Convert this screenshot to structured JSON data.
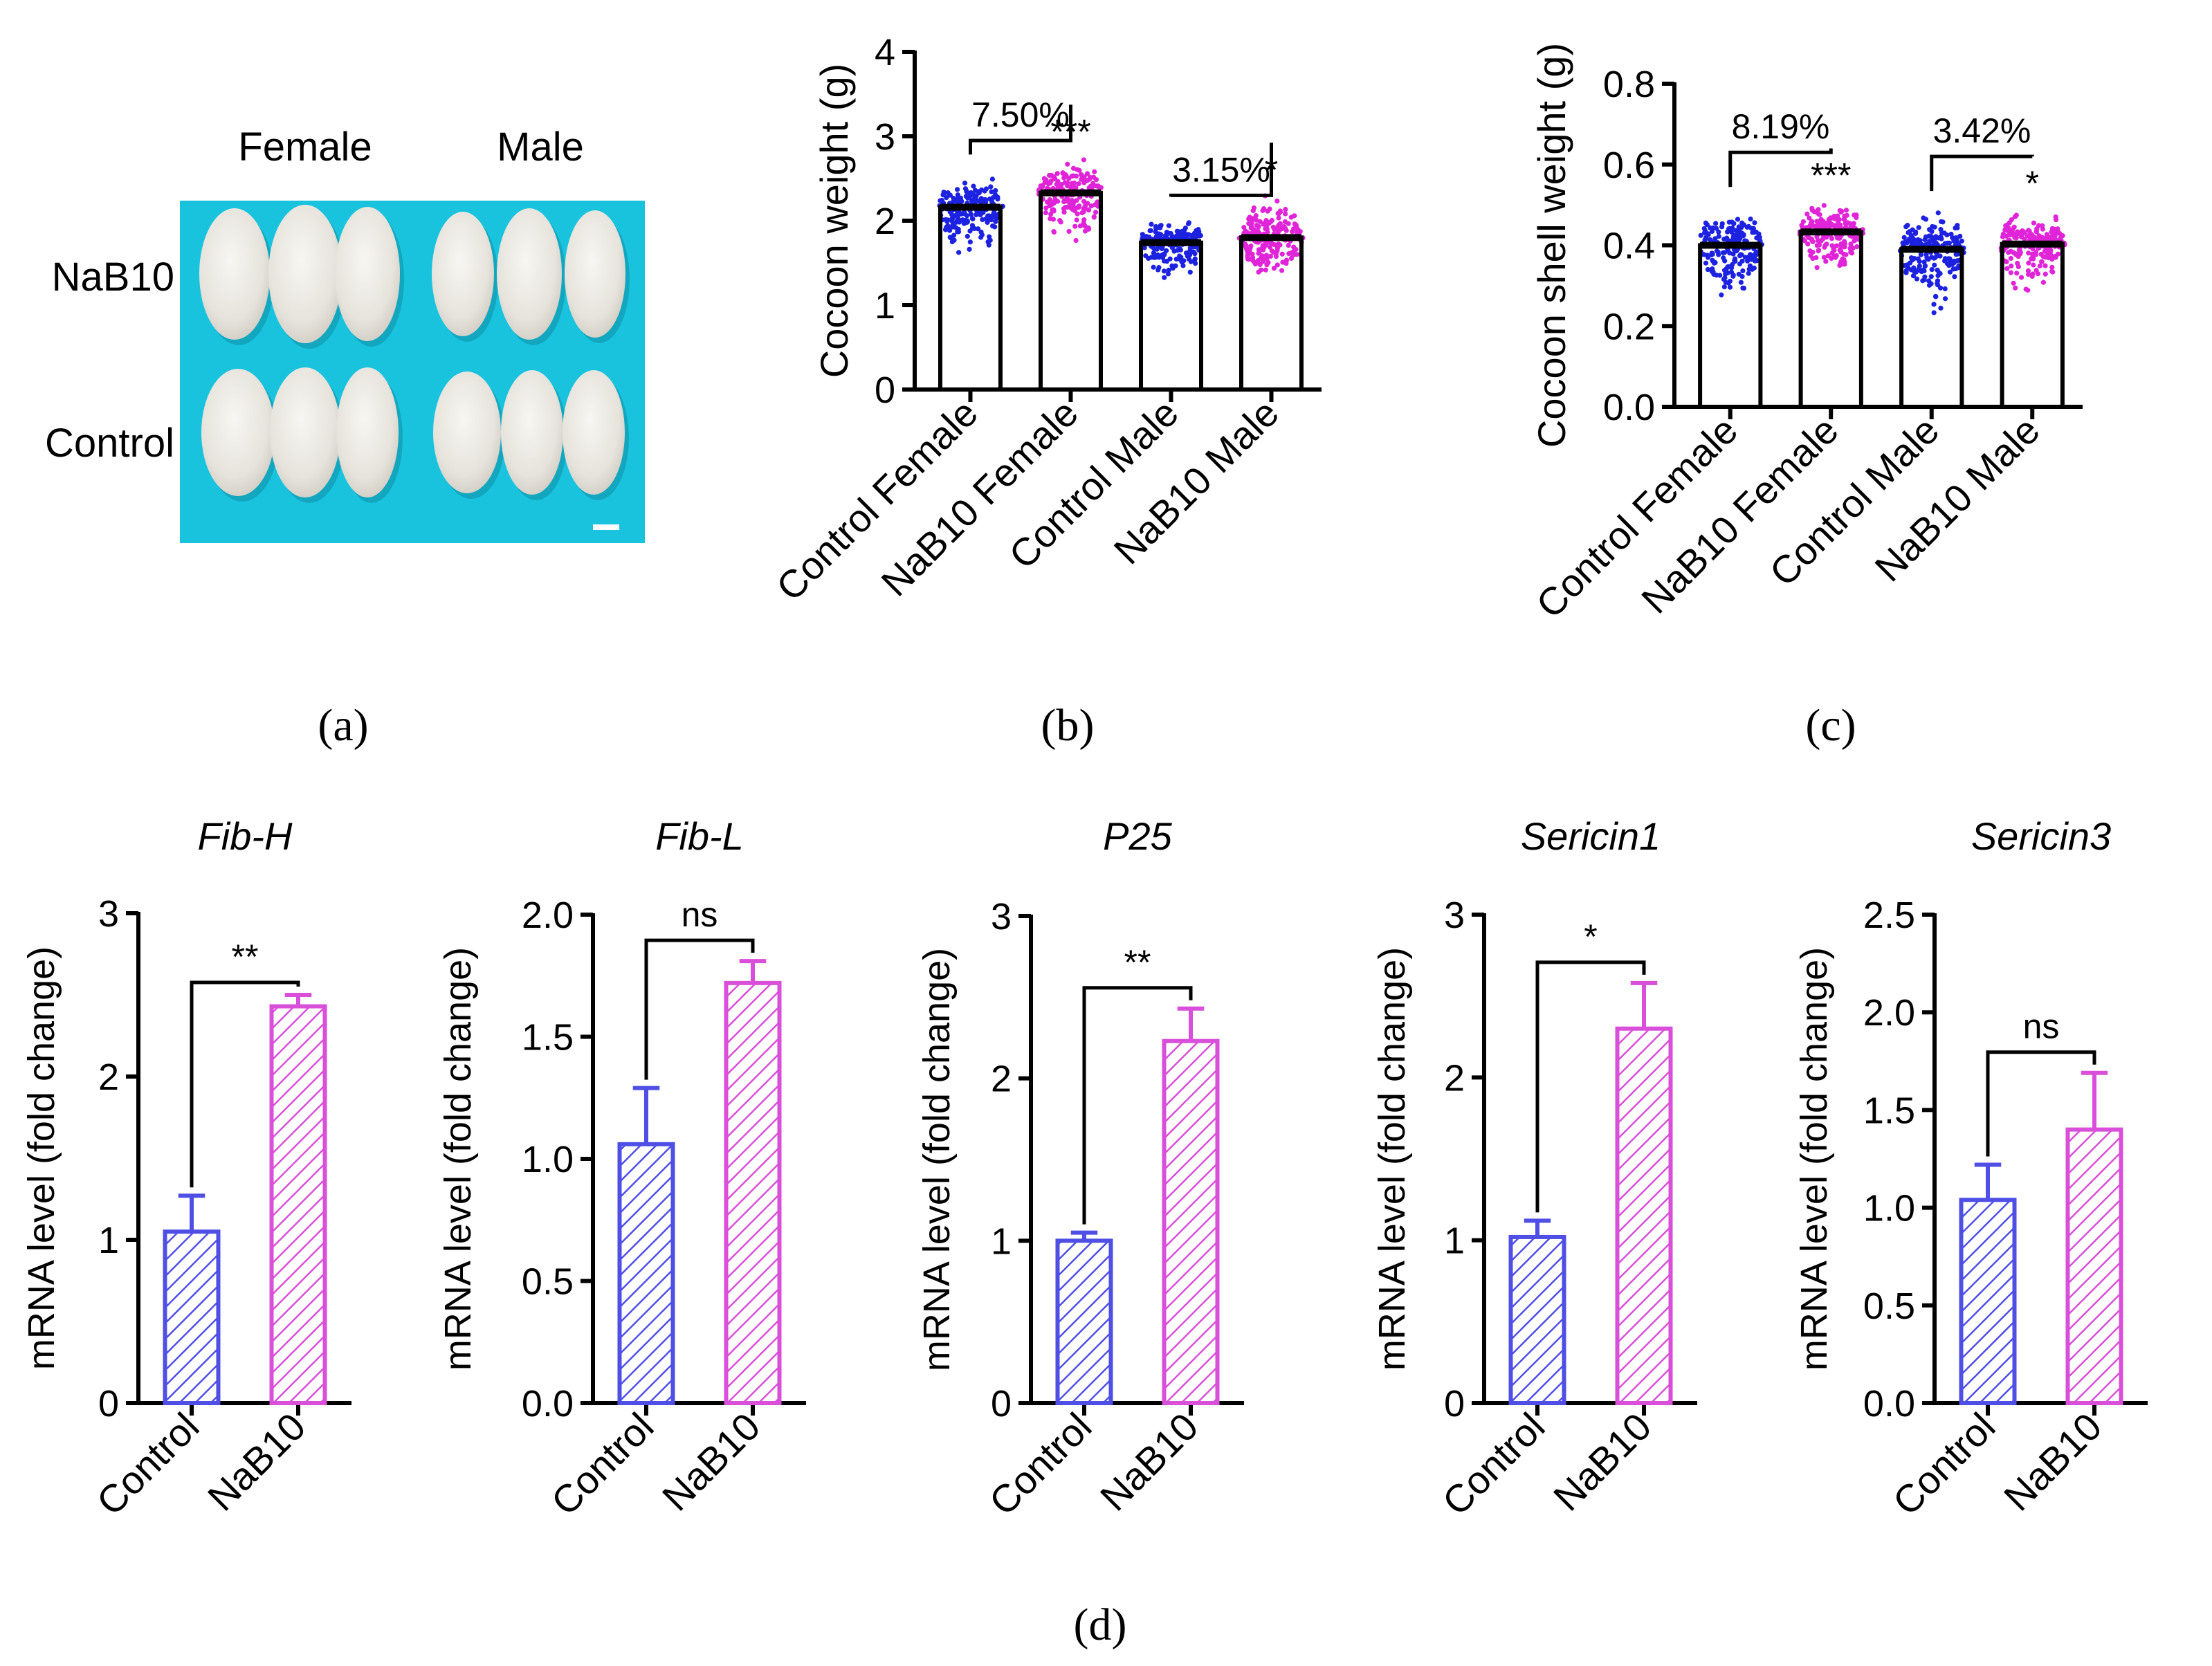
{
  "colors": {
    "control": "#4f4fe6",
    "nab10": "#d94fd9",
    "control_dot": "#1c22e0",
    "nab10_dot": "#e024d8",
    "photo_background": "#19c3de",
    "cocoon": "#eceae4"
  },
  "panels": {
    "a": {
      "label": "(a)",
      "col_labels": [
        "Female",
        "Male"
      ],
      "row_labels": [
        "NaB10",
        "Control"
      ]
    },
    "b": {
      "label": "(b)"
    },
    "c": {
      "label": "(c)"
    },
    "d": {
      "label": "(d)"
    }
  },
  "chart_data": [
    {
      "id": "b",
      "type": "bar",
      "ylabel": "Cocoon weight (g)",
      "ylim": [
        0,
        4
      ],
      "yticks": [
        "0",
        "1",
        "2",
        "3",
        "4"
      ],
      "categories": [
        "Control Female",
        "NaB10 Female",
        "Control Male",
        "NaB10 Male"
      ],
      "values": [
        2.16,
        2.33,
        1.74,
        1.8
      ],
      "colors": [
        "control",
        "nab10",
        "control",
        "nab10"
      ],
      "spread": [
        {
          "center": 2.16,
          "min": 1.42,
          "max": 2.62
        },
        {
          "center": 2.33,
          "min": 1.6,
          "max": 2.8
        },
        {
          "center": 1.74,
          "min": 1.1,
          "max": 2.12
        },
        {
          "center": 1.8,
          "min": 1.15,
          "max": 2.35
        }
      ],
      "significance": [
        "",
        "***",
        "",
        "*"
      ],
      "brackets": [
        {
          "from": 0,
          "to": 1,
          "label": "7.50%",
          "level": 2.95
        },
        {
          "from": 2,
          "to": 3,
          "label": "3.15%",
          "level": 2.3
        }
      ],
      "grid": false
    },
    {
      "id": "c",
      "type": "bar",
      "ylabel": "Cocoon shell weight (g)",
      "ylim": [
        0,
        0.8
      ],
      "yticks": [
        "0.0",
        "0.2",
        "0.4",
        "0.6",
        "0.8"
      ],
      "categories": [
        "Control Female",
        "NaB10 Female",
        "Control Male",
        "NaB10 Male"
      ],
      "values": [
        0.4,
        0.433,
        0.39,
        0.403
      ],
      "colors": [
        "control",
        "nab10",
        "control",
        "nab10"
      ],
      "spread": [
        {
          "center": 0.4,
          "min": 0.24,
          "max": 0.51
        },
        {
          "center": 0.433,
          "min": 0.31,
          "max": 0.52
        },
        {
          "center": 0.39,
          "min": 0.2,
          "max": 0.5
        },
        {
          "center": 0.403,
          "min": 0.22,
          "max": 0.5
        }
      ],
      "significance": [
        "",
        "***",
        "",
        "*"
      ],
      "brackets": [
        {
          "from": 0,
          "to": 1,
          "label": "8.19%",
          "level": 0.63
        },
        {
          "from": 2,
          "to": 3,
          "label": "3.42%",
          "level": 0.62
        }
      ],
      "grid": false
    },
    {
      "id": "d1",
      "type": "bar",
      "title": "Fib-H",
      "ylabel": "mRNA level (fold change)",
      "ylim": [
        0,
        3
      ],
      "yticks": [
        "0",
        "1",
        "2",
        "3"
      ],
      "categories": [
        "Control",
        "NaB10"
      ],
      "values": [
        1.05,
        2.43
      ],
      "errors": [
        0.22,
        0.07
      ],
      "colors": [
        "control",
        "nab10"
      ],
      "brackets": [
        {
          "from": 0,
          "to": 1,
          "label": "**"
        }
      ],
      "grid": false
    },
    {
      "id": "d2",
      "type": "bar",
      "title": "Fib-L",
      "ylabel": "mRNA level (fold change)",
      "ylim": [
        0,
        2.0
      ],
      "yticks": [
        "0.0",
        "0.5",
        "1.0",
        "1.5",
        "2.0"
      ],
      "categories": [
        "Control",
        "NaB10"
      ],
      "values": [
        1.06,
        1.72
      ],
      "errors": [
        0.23,
        0.09
      ],
      "colors": [
        "control",
        "nab10"
      ],
      "brackets": [
        {
          "from": 0,
          "to": 1,
          "label": "ns"
        }
      ],
      "grid": false
    },
    {
      "id": "d3",
      "type": "bar",
      "title": "P25",
      "ylabel": "mRNA level (fold change)",
      "ylim": [
        0,
        3
      ],
      "yticks": [
        "0",
        "1",
        "2",
        "3"
      ],
      "categories": [
        "Control",
        "NaB10"
      ],
      "values": [
        1.0,
        2.23
      ],
      "errors": [
        0.05,
        0.2
      ],
      "colors": [
        "control",
        "nab10"
      ],
      "brackets": [
        {
          "from": 0,
          "to": 1,
          "label": "**"
        }
      ],
      "grid": false
    },
    {
      "id": "d4",
      "type": "bar",
      "title": "Sericin1",
      "ylabel": "mRNA level (fold change)",
      "ylim": [
        0,
        3
      ],
      "yticks": [
        "0",
        "1",
        "2",
        "3"
      ],
      "categories": [
        "Control",
        "NaB10"
      ],
      "values": [
        1.02,
        2.3
      ],
      "errors": [
        0.1,
        0.28
      ],
      "colors": [
        "control",
        "nab10"
      ],
      "brackets": [
        {
          "from": 0,
          "to": 1,
          "label": "*"
        }
      ],
      "grid": false
    },
    {
      "id": "d5",
      "type": "bar",
      "title": "Sericin3",
      "ylabel": "mRNA level (fold change)",
      "ylim": [
        0,
        2.5
      ],
      "yticks": [
        "0.0",
        "0.5",
        "1.0",
        "1.5",
        "2.0",
        "2.5"
      ],
      "categories": [
        "Control",
        "NaB10"
      ],
      "values": [
        1.04,
        1.4
      ],
      "errors": [
        0.18,
        0.29
      ],
      "colors": [
        "control",
        "nab10"
      ],
      "brackets": [
        {
          "from": 0,
          "to": 1,
          "label": "ns"
        }
      ],
      "grid": false
    }
  ]
}
